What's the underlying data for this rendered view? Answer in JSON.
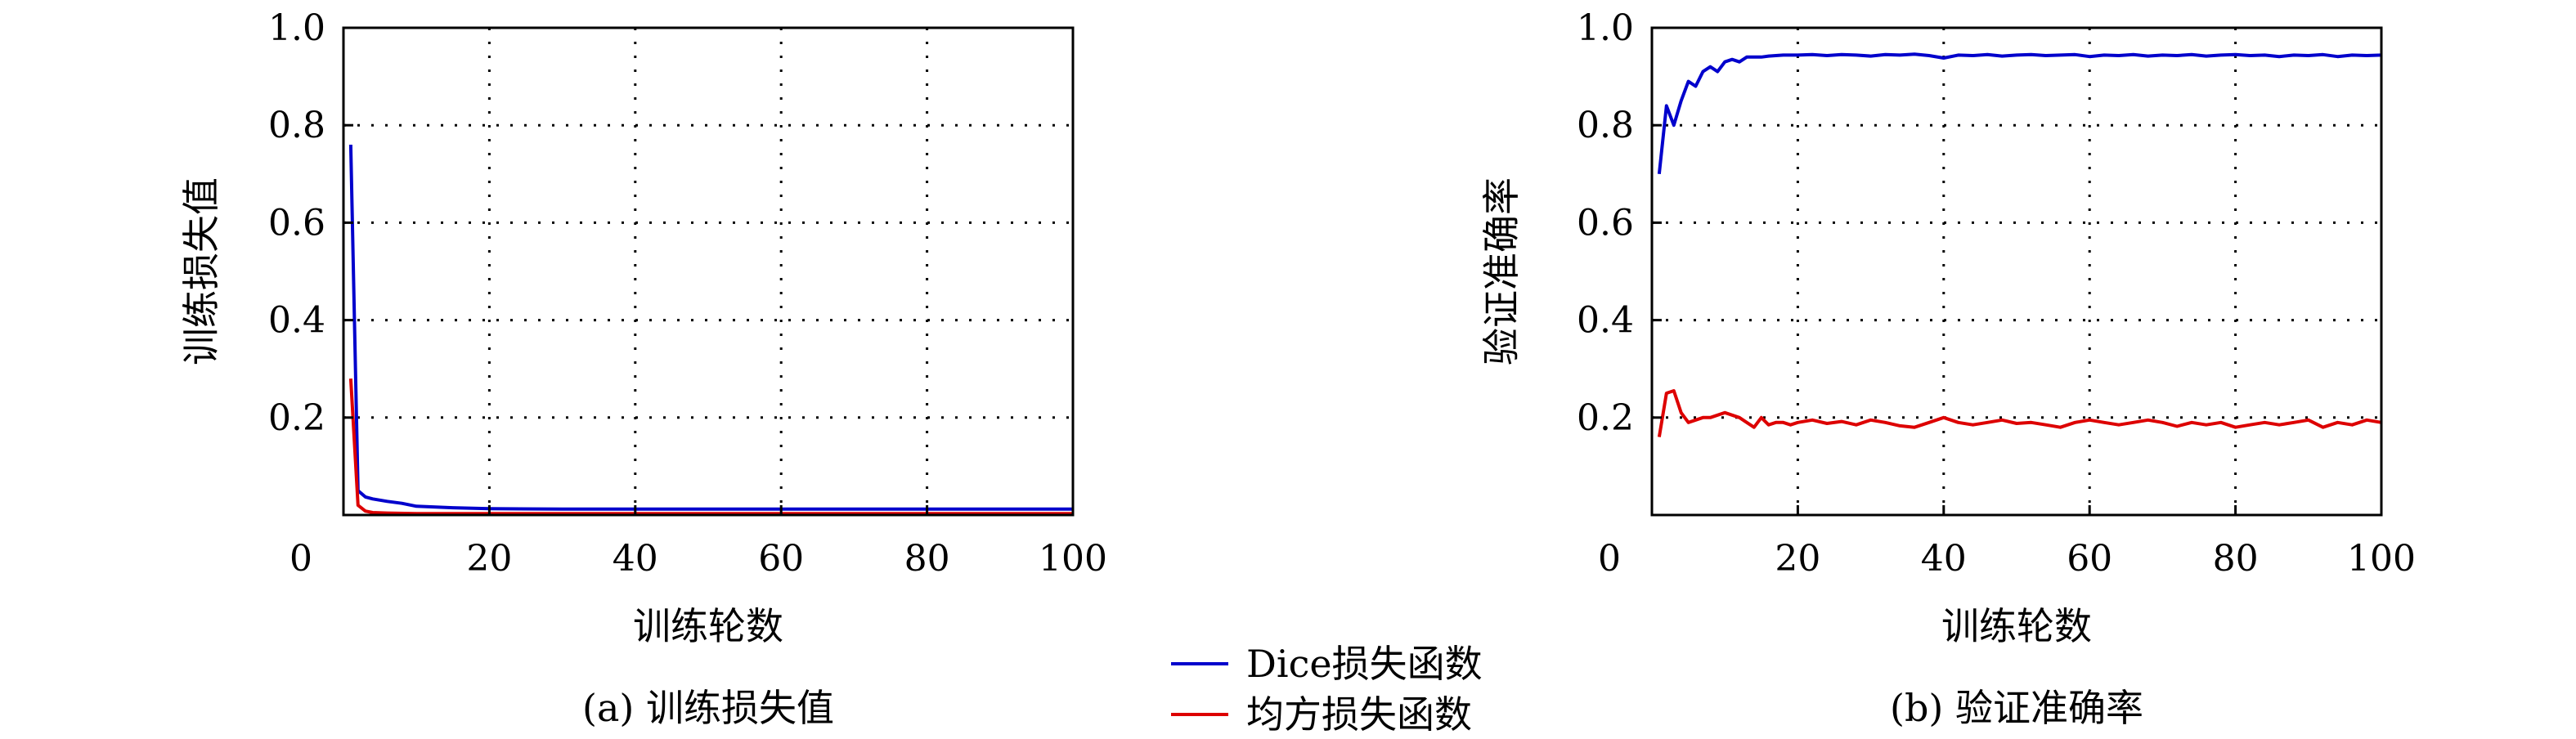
{
  "legend": {
    "items": [
      {
        "name": "Dice损失函数",
        "color": "#0000cc"
      },
      {
        "name": "均方损失函数",
        "color": "#dd0000"
      }
    ]
  },
  "chart_data": [
    {
      "type": "line",
      "caption": "(a) 训练损失值",
      "xlabel": "训练轮数",
      "ylabel": "训练损失值",
      "xlim": [
        0,
        100
      ],
      "ylim": [
        0,
        1.0
      ],
      "xticks": [
        "0",
        "20",
        "40",
        "60",
        "80",
        "100"
      ],
      "yticks": [
        "0.2",
        "0.4",
        "0.6",
        "0.8",
        "1.0"
      ],
      "grid": true,
      "series": [
        {
          "name": "Dice损失函数",
          "color": "#0000cc",
          "x": [
            1,
            2,
            3,
            4,
            6,
            8,
            10,
            15,
            20,
            30,
            40,
            50,
            60,
            70,
            80,
            90,
            100
          ],
          "y": [
            0.76,
            0.05,
            0.037,
            0.033,
            0.028,
            0.024,
            0.018,
            0.015,
            0.013,
            0.012,
            0.012,
            0.012,
            0.012,
            0.012,
            0.012,
            0.012,
            0.012
          ]
        },
        {
          "name": "均方损失函数",
          "color": "#dd0000",
          "x": [
            1,
            2,
            3,
            4,
            6,
            10,
            20,
            40,
            60,
            80,
            100
          ],
          "y": [
            0.28,
            0.02,
            0.008,
            0.005,
            0.004,
            0.003,
            0.003,
            0.003,
            0.003,
            0.003,
            0.003
          ]
        }
      ]
    },
    {
      "type": "line",
      "caption": "(b) 验证准确率",
      "xlabel": "训练轮数",
      "ylabel": "验证准确率",
      "xlim": [
        0,
        100
      ],
      "ylim": [
        0,
        1.0
      ],
      "xticks": [
        "0",
        "20",
        "40",
        "60",
        "80",
        "100"
      ],
      "yticks": [
        "0.2",
        "0.4",
        "0.6",
        "0.8",
        "1.0"
      ],
      "grid": true,
      "series": [
        {
          "name": "Dice损失函数",
          "color": "#0000cc",
          "x": [
            1,
            2,
            3,
            4,
            5,
            6,
            7,
            8,
            9,
            10,
            11,
            12,
            13,
            14,
            15,
            16,
            17,
            18,
            19,
            20,
            22,
            24,
            26,
            28,
            30,
            32,
            34,
            36,
            38,
            40,
            42,
            44,
            46,
            48,
            50,
            52,
            54,
            56,
            58,
            60,
            62,
            64,
            66,
            68,
            70,
            72,
            74,
            76,
            78,
            80,
            82,
            84,
            86,
            88,
            90,
            92,
            94,
            96,
            98,
            100
          ],
          "y": [
            0.7,
            0.84,
            0.8,
            0.85,
            0.89,
            0.88,
            0.91,
            0.92,
            0.91,
            0.93,
            0.935,
            0.93,
            0.94,
            0.94,
            0.94,
            0.942,
            0.943,
            0.944,
            0.944,
            0.944,
            0.945,
            0.943,
            0.945,
            0.944,
            0.942,
            0.945,
            0.944,
            0.946,
            0.943,
            0.938,
            0.944,
            0.943,
            0.945,
            0.942,
            0.944,
            0.945,
            0.943,
            0.944,
            0.945,
            0.941,
            0.944,
            0.943,
            0.945,
            0.942,
            0.944,
            0.943,
            0.945,
            0.942,
            0.944,
            0.945,
            0.943,
            0.944,
            0.941,
            0.944,
            0.943,
            0.945,
            0.941,
            0.944,
            0.943,
            0.944
          ]
        },
        {
          "name": "均方损失函数",
          "color": "#dd0000",
          "x": [
            1,
            2,
            3,
            4,
            5,
            6,
            7,
            8,
            9,
            10,
            11,
            12,
            13,
            14,
            15,
            16,
            17,
            18,
            19,
            20,
            22,
            24,
            26,
            28,
            30,
            32,
            34,
            36,
            38,
            40,
            42,
            44,
            46,
            48,
            50,
            52,
            54,
            56,
            58,
            60,
            62,
            64,
            66,
            68,
            70,
            72,
            74,
            76,
            78,
            80,
            82,
            84,
            86,
            88,
            90,
            92,
            94,
            96,
            98,
            100
          ],
          "y": [
            0.16,
            0.25,
            0.255,
            0.21,
            0.19,
            0.195,
            0.2,
            0.2,
            0.205,
            0.21,
            0.205,
            0.2,
            0.19,
            0.18,
            0.2,
            0.185,
            0.19,
            0.19,
            0.185,
            0.19,
            0.195,
            0.188,
            0.192,
            0.185,
            0.195,
            0.19,
            0.183,
            0.18,
            0.19,
            0.2,
            0.19,
            0.185,
            0.19,
            0.195,
            0.188,
            0.19,
            0.185,
            0.18,
            0.19,
            0.195,
            0.19,
            0.185,
            0.19,
            0.195,
            0.19,
            0.182,
            0.19,
            0.185,
            0.19,
            0.18,
            0.185,
            0.19,
            0.185,
            0.19,
            0.195,
            0.18,
            0.19,
            0.185,
            0.195,
            0.19
          ]
        }
      ]
    }
  ]
}
